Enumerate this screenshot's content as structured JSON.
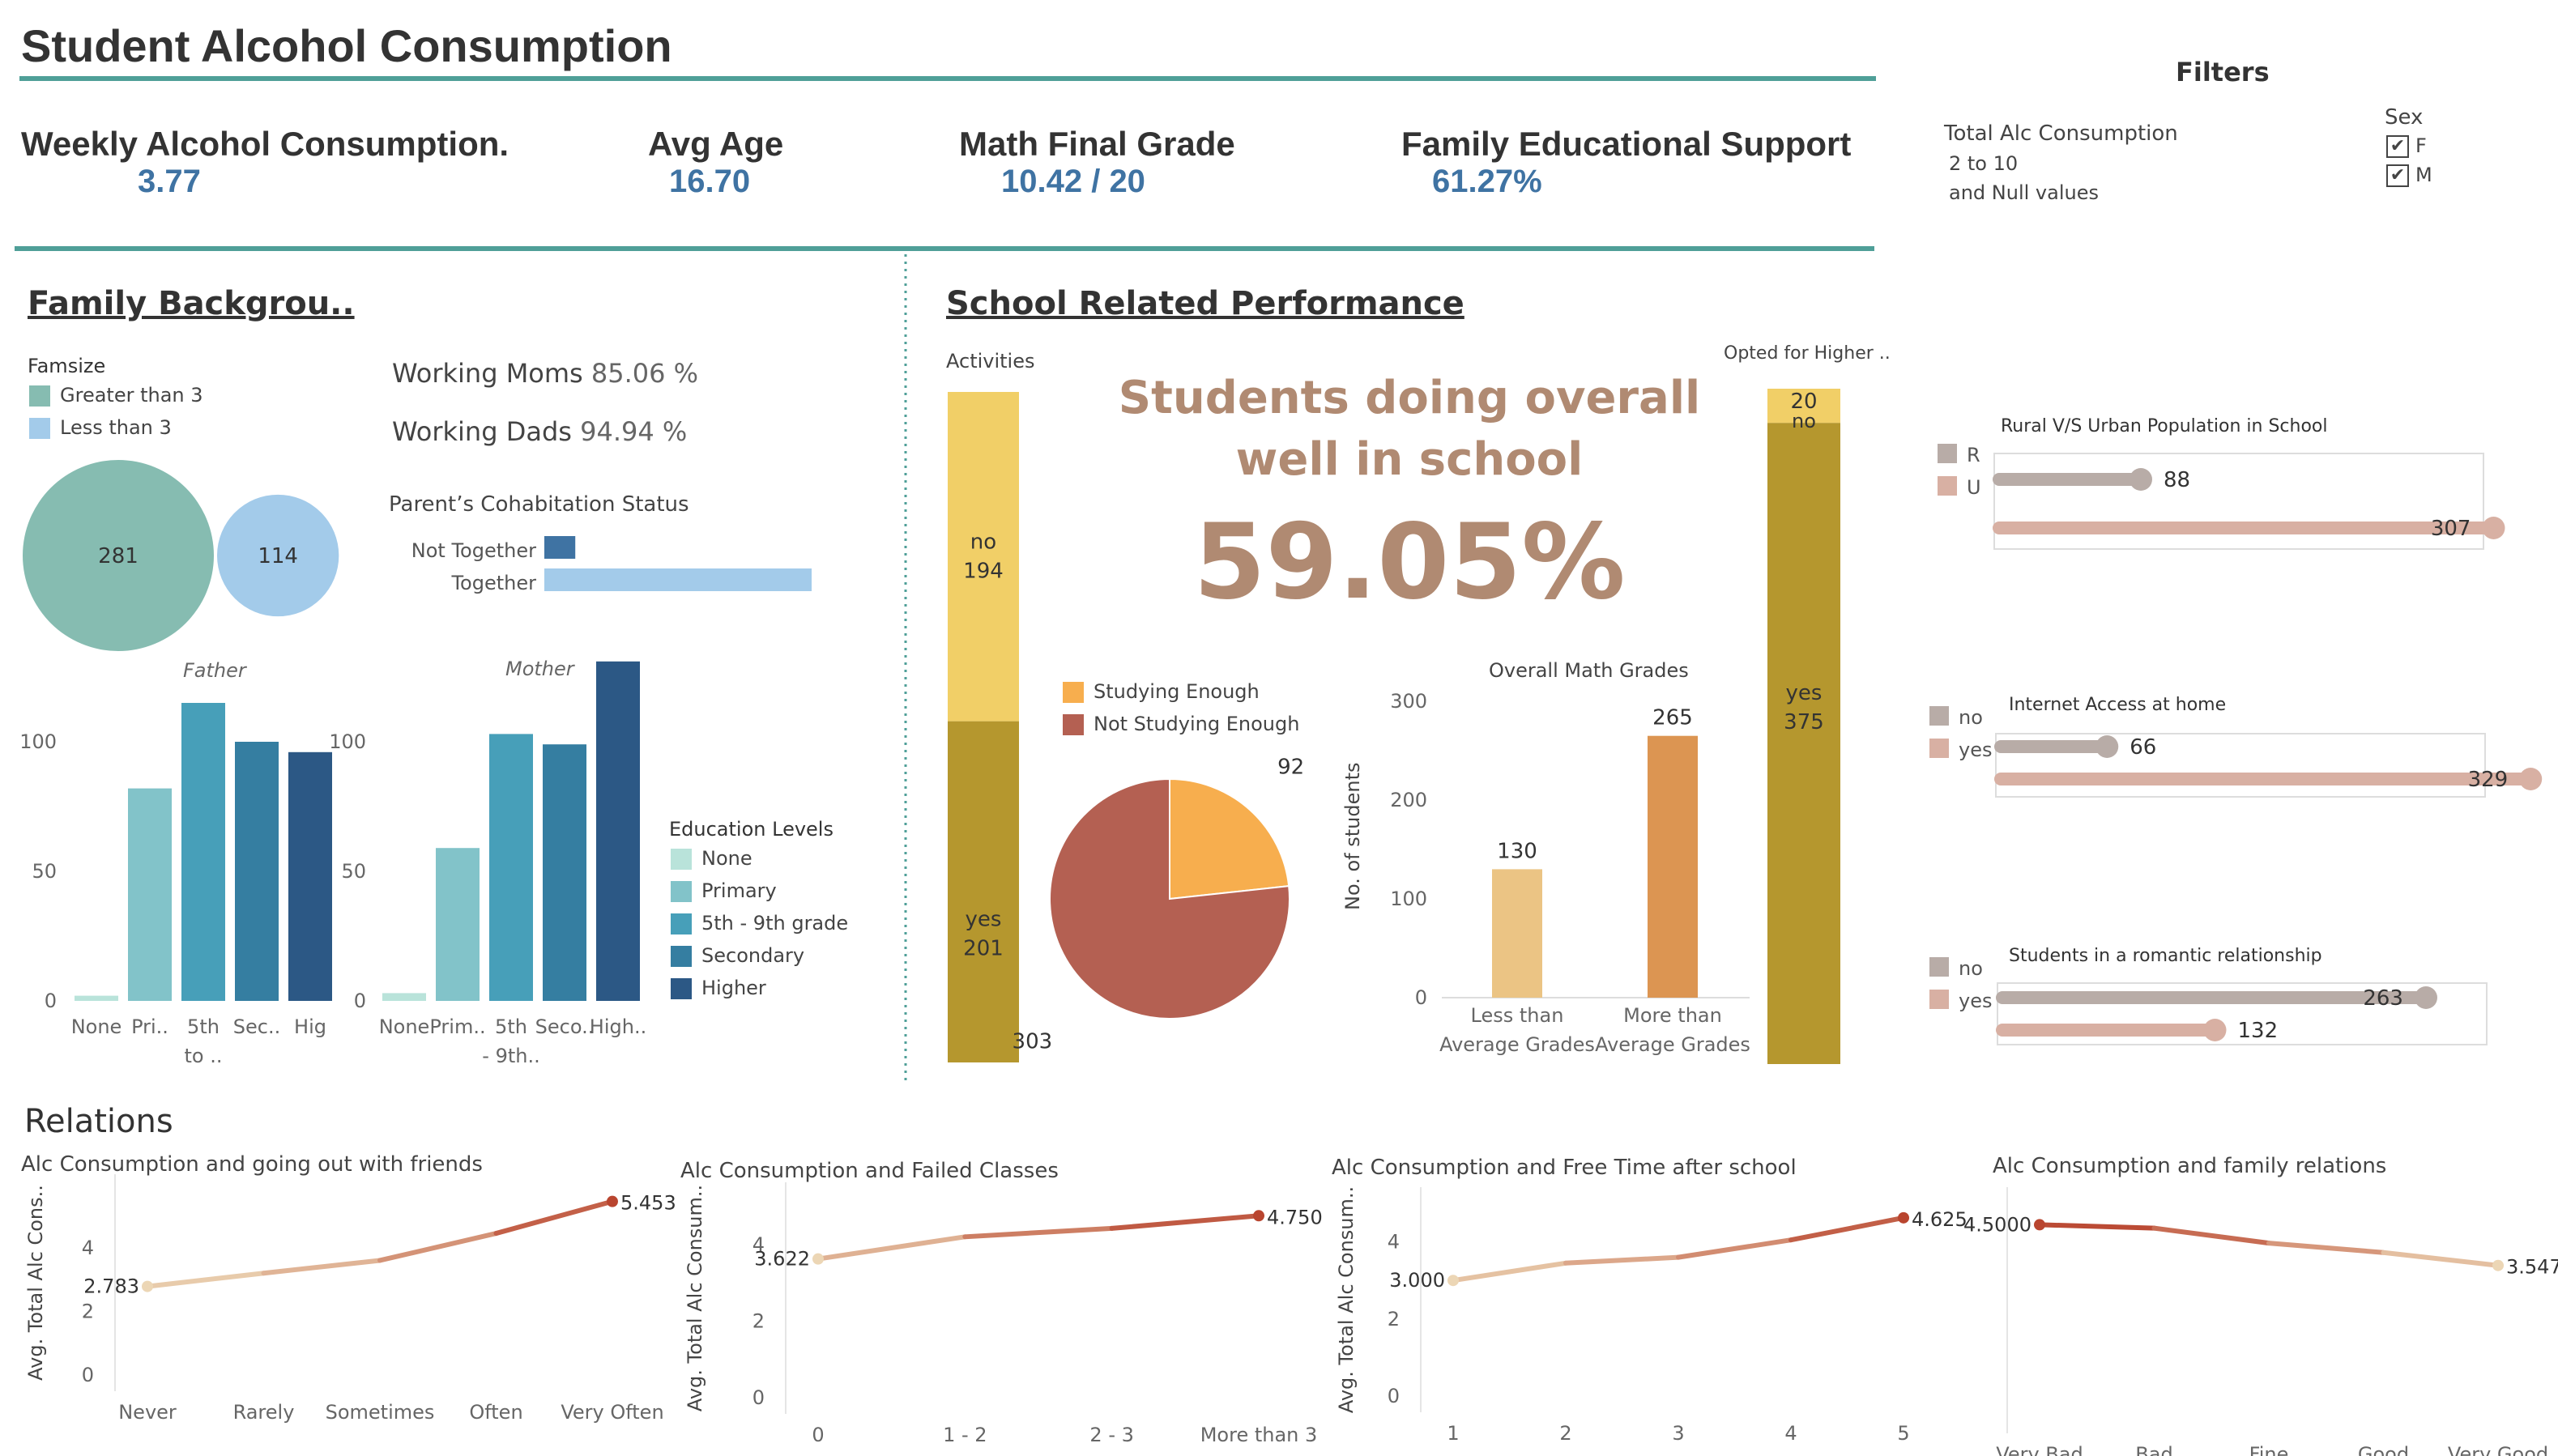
{
  "title": "Student Alcohol Consumption",
  "kpis": [
    {
      "label": "Weekly Alcohol Consumption.",
      "value": "3.77"
    },
    {
      "label": "Avg Age",
      "value": "16.70"
    },
    {
      "label": "Math Final Grade",
      "value": "10.42 / 20"
    },
    {
      "label": "Family Educational Support",
      "value": "61.27%"
    }
  ],
  "filters": {
    "title": "Filters",
    "alc_label": "Total Alc Consumption",
    "alc_range": "2 to 10",
    "alc_null": "and Null values",
    "sex_label": "Sex",
    "sex_options": [
      "F",
      "M"
    ],
    "check_glyph": "✔"
  },
  "family": {
    "title": "Family Backgrou..",
    "famsize_label": "Famsize",
    "famsize_legend": [
      "Greater than 3",
      "Less than 3"
    ],
    "working_moms_label": "Working Moms",
    "working_moms_value": "85.06 %",
    "working_dads_label": "Working Dads",
    "working_dads_value": "94.94 %",
    "cohab_title": "Parent’s Cohabitation Status",
    "father_label": "Father",
    "mother_label": "Mother",
    "edu_legend_title": "Education Levels",
    "edu_legend": [
      "None",
      "Primary",
      "5th - 9th grade",
      "Secondary",
      "Higher"
    ]
  },
  "school": {
    "title": "School Related Performance",
    "activities_label": "Activities",
    "higher_label": "Opted for Higher ..",
    "headline_line1": "Students doing overall",
    "headline_line2": "well in school",
    "headline_pct": "59.05%",
    "study_legend": [
      "Studying Enough",
      "Not Studying Enough"
    ],
    "math_title": "Overall Math Grades",
    "math_ylabel": "No. of students"
  },
  "right_panels": {
    "rural_title": "Rural V/S Urban Population in School",
    "internet_title": "Internet Access at home",
    "romantic_title": "Students in a romantic relationship"
  },
  "relations": {
    "title": "Relations"
  },
  "colors": {
    "teal_rule": "#4f9f98",
    "kpi_blue": "#3f73a3",
    "famsize_big": "#86bcb1",
    "famsize_small": "#a3cbea",
    "edu": [
      "#b9e3da",
      "#82c3c9",
      "#479fb9",
      "#357ea1",
      "#2c5885"
    ],
    "activities_no": "#f1cf67",
    "activities_yes": "#b5972e",
    "headline": "#b08a72",
    "pie_enough": "#f7ae4e",
    "pie_not": "#b46052",
    "math_less": "#ebc484",
    "math_more": "#dc9552",
    "lollipop_gray": "#b8aca7",
    "lollipop_pink": "#d8b0a3"
  },
  "chart_data": [
    {
      "type": "pie",
      "name": "famsize",
      "categories": [
        "Greater than 3",
        "Less than 3"
      ],
      "values": [
        281,
        114
      ]
    },
    {
      "type": "bar",
      "name": "cohabitation",
      "orientation": "horizontal",
      "title": "Parent’s Cohabitation Status",
      "categories": [
        "Not Together",
        "Together"
      ],
      "values": [
        41,
        354
      ]
    },
    {
      "type": "bar",
      "name": "father-education",
      "title": "Father",
      "categories": [
        "None",
        "Pri..",
        "5th to ..",
        "Sec..",
        "Hig"
      ],
      "values": [
        2,
        82,
        115,
        100,
        96
      ],
      "yticks": [
        0,
        50,
        100
      ],
      "ylim": [
        0,
        130
      ]
    },
    {
      "type": "bar",
      "name": "mother-education",
      "title": "Mother",
      "categories": [
        "None",
        "Prim..",
        "5th - 9th..",
        "Seco..",
        "High.."
      ],
      "values": [
        3,
        59,
        103,
        99,
        131
      ],
      "yticks": [
        0,
        50,
        100
      ],
      "ylim": [
        0,
        130
      ]
    },
    {
      "type": "bar",
      "name": "activities",
      "title": "Activities",
      "stacked": true,
      "series": [
        {
          "name": "no",
          "values": [
            194
          ]
        },
        {
          "name": "yes",
          "values": [
            201
          ]
        }
      ]
    },
    {
      "type": "bar",
      "name": "higher",
      "title": "Opted for Higher ..",
      "stacked": true,
      "series": [
        {
          "name": "no",
          "values": [
            20
          ]
        },
        {
          "name": "yes",
          "values": [
            375
          ]
        }
      ]
    },
    {
      "type": "pie",
      "name": "studying",
      "categories": [
        "Studying Enough",
        "Not Studying Enough"
      ],
      "values": [
        92,
        303
      ]
    },
    {
      "type": "bar",
      "name": "math-grades",
      "title": "Overall Math Grades",
      "ylabel": "No. of students",
      "categories": [
        "Less than Average Grades",
        "More than Average Grades"
      ],
      "category_lines": [
        [
          "Less than",
          "Average Grades"
        ],
        [
          "More than",
          "Average Grades"
        ]
      ],
      "values": [
        130,
        265
      ],
      "yticks": [
        0,
        100,
        200,
        300
      ],
      "ylim": [
        0,
        300
      ]
    },
    {
      "type": "lollipop",
      "name": "rural-urban",
      "title": "Rural V/S Urban Population in School",
      "categories": [
        "R",
        "U"
      ],
      "values": [
        88,
        307
      ]
    },
    {
      "type": "lollipop",
      "name": "internet",
      "title": "Internet Access at home",
      "categories": [
        "no",
        "yes"
      ],
      "values": [
        66,
        329
      ]
    },
    {
      "type": "lollipop",
      "name": "romantic",
      "title": "Students in a romantic relationship",
      "categories": [
        "no",
        "yes"
      ],
      "values": [
        263,
        132
      ]
    },
    {
      "type": "line",
      "name": "goout",
      "title": "Alc Consumption and going out with friends",
      "ylabel": "Avg. Total Alc Cons..",
      "categories": [
        "Never",
        "Rarely",
        "Sometimes",
        "Often",
        "Very Often"
      ],
      "values": [
        2.783,
        3.2,
        3.6,
        4.45,
        5.453
      ],
      "start_label": "2.783",
      "end_label": "5.453",
      "yticks": [
        0,
        2,
        4
      ],
      "ylim": [
        0,
        5.8
      ]
    },
    {
      "type": "line",
      "name": "failures",
      "title": "Alc Consumption and Failed Classes",
      "ylabel": "Avg. Total Alc Consum..",
      "categories": [
        "0",
        "1 - 2",
        "2 - 3",
        "More than 3"
      ],
      "values": [
        3.622,
        4.2,
        4.42,
        4.75
      ],
      "start_label": "3.622",
      "end_label": "4.750",
      "yticks": [
        0,
        2,
        4
      ],
      "ylim": [
        0,
        5.2
      ]
    },
    {
      "type": "line",
      "name": "freetime",
      "title": "Alc Consumption and Free Time after school",
      "ylabel": "Avg. Total Alc Consum..",
      "categories": [
        "1",
        "2",
        "3",
        "4",
        "5"
      ],
      "values": [
        3.0,
        3.45,
        3.6,
        4.05,
        4.625
      ],
      "start_label": "3.000",
      "end_label": "4.625",
      "yticks": [
        0,
        2,
        4
      ],
      "ylim": [
        0,
        5.0
      ]
    },
    {
      "type": "line",
      "name": "famrel",
      "title": "Alc Consumption and family relations",
      "ylabel": "",
      "categories": [
        "Very Bad",
        "Bad",
        "Fine",
        "Good",
        "Very Good"
      ],
      "values": [
        4.5,
        4.42,
        4.07,
        3.85,
        3.5472
      ],
      "start_label": "4.5000",
      "end_label": "3.5472",
      "yticks": [],
      "ylim": [
        0,
        5.0
      ]
    }
  ]
}
